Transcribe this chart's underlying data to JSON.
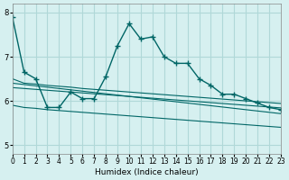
{
  "xlabel": "Humidex (Indice chaleur)",
  "ylabel": "",
  "bg_color": "#d6f0f0",
  "grid_color": "#b0d8d8",
  "line_color": "#006666",
  "xlim": [
    0,
    23
  ],
  "ylim": [
    4.8,
    8.2
  ],
  "yticks": [
    5,
    6,
    7,
    8
  ],
  "xticks": [
    0,
    1,
    2,
    3,
    4,
    5,
    6,
    7,
    8,
    9,
    10,
    11,
    12,
    13,
    14,
    15,
    16,
    17,
    18,
    19,
    20,
    21,
    22,
    23
  ],
  "series": [
    {
      "x": [
        0,
        1,
        2,
        3,
        4,
        5,
        6,
        7,
        8,
        9,
        10,
        11,
        12,
        13,
        14,
        15,
        16,
        17,
        18,
        19,
        20,
        21,
        22,
        23
      ],
      "y": [
        7.9,
        6.65,
        6.5,
        5.85,
        5.85,
        6.2,
        6.05,
        6.05,
        6.55,
        7.25,
        7.75,
        7.4,
        7.45,
        7.0,
        6.85,
        6.85,
        6.5,
        6.35,
        6.15,
        6.15,
        6.05,
        5.95,
        5.85,
        5.8
      ],
      "marker": "+"
    },
    {
      "x": [
        0,
        1,
        2,
        3,
        4,
        5,
        6,
        7,
        8,
        9,
        10,
        11,
        12,
        13,
        14,
        15,
        16,
        17,
        18,
        19,
        20,
        21,
        22,
        23
      ],
      "y": [
        6.5,
        6.4,
        6.38,
        6.35,
        6.33,
        6.31,
        6.28,
        6.26,
        6.24,
        6.22,
        6.2,
        6.18,
        6.16,
        6.14,
        6.12,
        6.1,
        6.08,
        6.06,
        6.04,
        6.02,
        6.0,
        5.98,
        5.96,
        5.94
      ],
      "marker": null
    },
    {
      "x": [
        0,
        1,
        2,
        3,
        4,
        5,
        6,
        7,
        8,
        9,
        10,
        11,
        12,
        13,
        14,
        15,
        16,
        17,
        18,
        19,
        20,
        21,
        22,
        23
      ],
      "y": [
        6.4,
        6.37,
        6.34,
        6.31,
        6.28,
        6.25,
        6.22,
        6.19,
        6.16,
        6.13,
        6.1,
        6.07,
        6.04,
        6.01,
        5.98,
        5.95,
        5.92,
        5.89,
        5.86,
        5.83,
        5.8,
        5.77,
        5.74,
        5.71
      ],
      "marker": null
    },
    {
      "x": [
        0,
        1,
        2,
        3,
        4,
        5,
        6,
        7,
        8,
        9,
        10,
        11,
        12,
        13,
        14,
        15,
        16,
        17,
        18,
        19,
        20,
        21,
        22,
        23
      ],
      "y": [
        6.3,
        6.28,
        6.26,
        6.24,
        6.22,
        6.2,
        6.18,
        6.16,
        6.14,
        6.12,
        6.1,
        6.08,
        6.06,
        6.04,
        6.02,
        6.0,
        5.98,
        5.96,
        5.94,
        5.92,
        5.9,
        5.88,
        5.86,
        5.84
      ],
      "marker": null
    },
    {
      "x": [
        0,
        1,
        2,
        3,
        4,
        5,
        6,
        7,
        8,
        9,
        10,
        11,
        12,
        13,
        14,
        15,
        16,
        17,
        18,
        19,
        20,
        21,
        22,
        23
      ],
      "y": [
        5.9,
        5.85,
        5.83,
        5.8,
        5.78,
        5.76,
        5.74,
        5.72,
        5.7,
        5.68,
        5.66,
        5.64,
        5.62,
        5.6,
        5.58,
        5.56,
        5.54,
        5.52,
        5.5,
        5.48,
        5.46,
        5.44,
        5.42,
        5.4
      ],
      "marker": null
    }
  ]
}
